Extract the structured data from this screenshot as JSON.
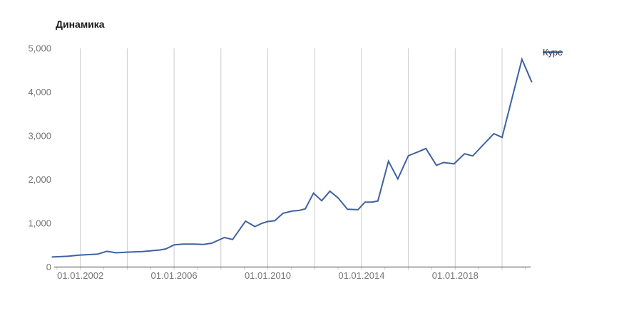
{
  "window": {
    "background": "#ffffff"
  },
  "chart_data": {
    "type": "line",
    "title": "Динамика",
    "legend": {
      "label": "Курс",
      "position": "right-top"
    },
    "xlabel": "",
    "ylabel": "",
    "xlim": [
      2000.75,
      2021.32
    ],
    "ylim": [
      0,
      5000
    ],
    "grid": "vertical-only",
    "colors": {
      "grid": "#cccccc",
      "baseline": "#333333",
      "tick_label": "#757575",
      "title": "#1a1a1a",
      "legend_label": "#3c4043"
    },
    "y_ticks": [
      {
        "value": 5000,
        "label": "5,000"
      },
      {
        "value": 4000,
        "label": "4,000"
      },
      {
        "value": 3000,
        "label": "3,000"
      },
      {
        "value": 2000,
        "label": "2,000"
      },
      {
        "value": 1000,
        "label": "1,000"
      },
      {
        "value": 0,
        "label": "0"
      }
    ],
    "x_ticks_labeled": [
      {
        "year": 2002,
        "label": "01.01.2002"
      },
      {
        "year": 2006,
        "label": "01.01.2006"
      },
      {
        "year": 2010,
        "label": "01.01.2010"
      },
      {
        "year": 2014,
        "label": "01.01.2014"
      },
      {
        "year": 2018,
        "label": "01.01.2018"
      }
    ],
    "x_gridline_years": [
      2002,
      2004,
      2006,
      2008,
      2010,
      2012,
      2014,
      2016,
      2018,
      2020
    ],
    "x_minor_tick_years": [
      2001,
      2002,
      2003,
      2004,
      2005,
      2006,
      2007,
      2008,
      2009,
      2010,
      2011,
      2012,
      2013,
      2014,
      2015,
      2016,
      2017,
      2018,
      2019,
      2020,
      2021
    ],
    "series": [
      {
        "name": "Курс",
        "color": "#3e62a0",
        "points": [
          [
            2000.78,
            230
          ],
          [
            2001.45,
            245
          ],
          [
            2002.0,
            275
          ],
          [
            2002.73,
            295
          ],
          [
            2003.13,
            360
          ],
          [
            2003.52,
            325
          ],
          [
            2004.0,
            340
          ],
          [
            2004.65,
            355
          ],
          [
            2005.4,
            390
          ],
          [
            2005.65,
            415
          ],
          [
            2006.0,
            505
          ],
          [
            2006.4,
            525
          ],
          [
            2006.87,
            525
          ],
          [
            2007.25,
            515
          ],
          [
            2007.6,
            545
          ],
          [
            2008.15,
            675
          ],
          [
            2008.5,
            630
          ],
          [
            2009.05,
            1050
          ],
          [
            2009.45,
            925
          ],
          [
            2009.75,
            1000
          ],
          [
            2010.0,
            1040
          ],
          [
            2010.3,
            1060
          ],
          [
            2010.65,
            1230
          ],
          [
            2011.05,
            1280
          ],
          [
            2011.35,
            1295
          ],
          [
            2011.6,
            1330
          ],
          [
            2011.95,
            1690
          ],
          [
            2012.3,
            1515
          ],
          [
            2012.65,
            1735
          ],
          [
            2013.0,
            1580
          ],
          [
            2013.4,
            1320
          ],
          [
            2013.85,
            1310
          ],
          [
            2014.15,
            1485
          ],
          [
            2014.45,
            1485
          ],
          [
            2014.7,
            1510
          ],
          [
            2015.15,
            2420
          ],
          [
            2015.55,
            2015
          ],
          [
            2016.0,
            2545
          ],
          [
            2016.45,
            2640
          ],
          [
            2016.75,
            2710
          ],
          [
            2017.2,
            2325
          ],
          [
            2017.5,
            2390
          ],
          [
            2017.95,
            2360
          ],
          [
            2018.4,
            2590
          ],
          [
            2018.75,
            2540
          ],
          [
            2019.1,
            2740
          ],
          [
            2019.65,
            3050
          ],
          [
            2020.0,
            2965
          ],
          [
            2020.85,
            4750
          ],
          [
            2021.27,
            4225
          ]
        ]
      }
    ]
  }
}
